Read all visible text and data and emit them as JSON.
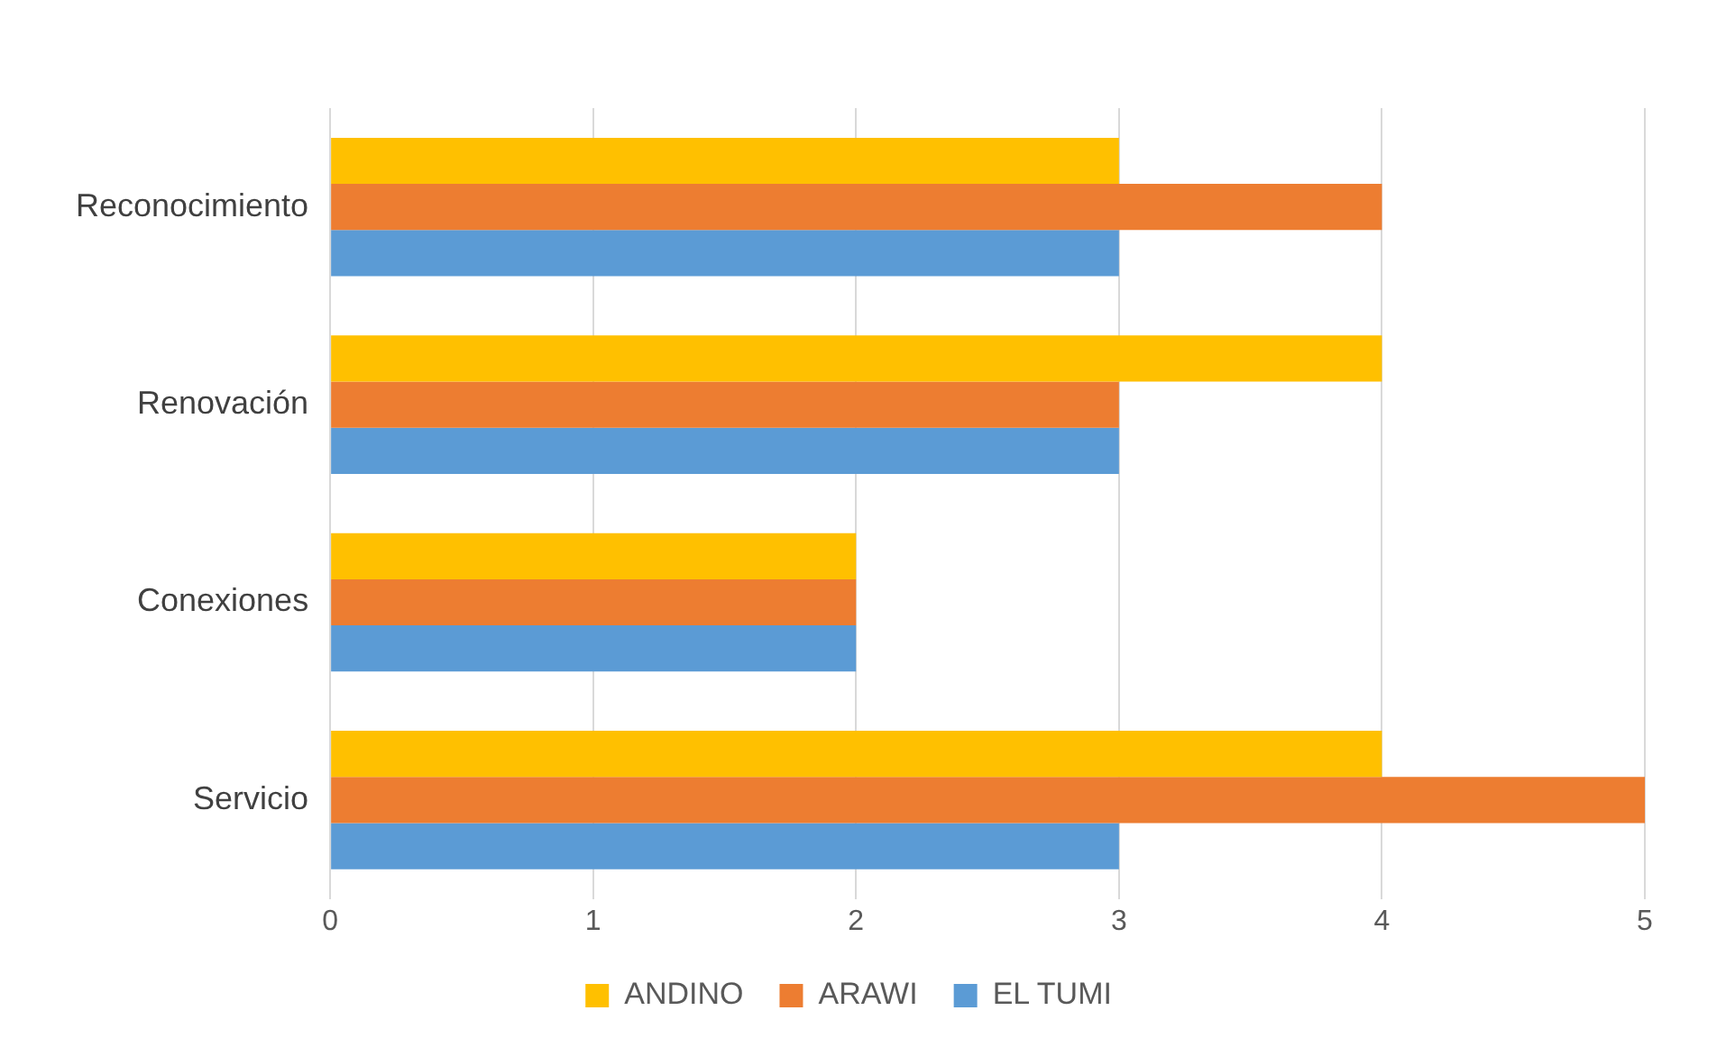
{
  "chart_data": {
    "type": "bar",
    "orientation": "horizontal",
    "categories": [
      "Reconocimiento",
      "Renovación",
      "Conexiones",
      "Servicio"
    ],
    "series": [
      {
        "name": "ANDINO",
        "color": "#ffc000",
        "values": [
          3,
          4,
          2,
          4
        ]
      },
      {
        "name": "ARAWI",
        "color": "#ed7d31",
        "values": [
          4,
          3,
          2,
          5
        ]
      },
      {
        "name": "EL TUMI",
        "color": "#5b9bd5",
        "values": [
          3,
          3,
          2,
          3
        ]
      }
    ],
    "xlim": [
      0,
      5
    ],
    "xticks": [
      0,
      1,
      2,
      3,
      4,
      5
    ],
    "grid": "x",
    "legend": "bottom"
  }
}
